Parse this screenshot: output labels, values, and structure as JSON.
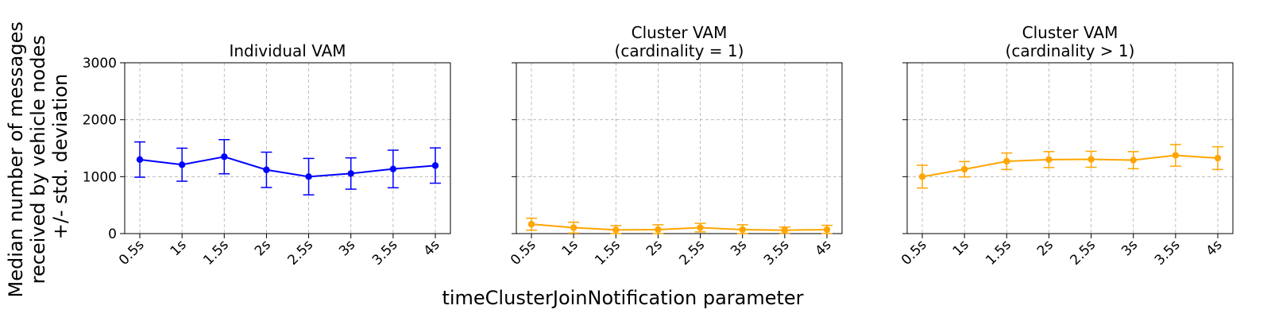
{
  "figure": {
    "ylabel_lines": [
      "Median number of messages",
      "received by vehicle nodes",
      "+/- std. deviation"
    ],
    "xlabel": "timeClusterJoinNotification parameter"
  },
  "chart_data": [
    {
      "type": "line",
      "title_lines": [
        "Individual VAM"
      ],
      "categories": [
        "0.5s",
        "1s",
        "1.5s",
        "2s",
        "2.5s",
        "3s",
        "3.5s",
        "4s"
      ],
      "ylim": [
        0,
        3000
      ],
      "yticks": [
        0,
        1000,
        2000,
        3000
      ],
      "grid": true,
      "series": [
        {
          "color": "#0000ff",
          "values": [
            1300,
            1210,
            1350,
            1120,
            1000,
            1055,
            1135,
            1195
          ],
          "error": [
            310,
            290,
            300,
            310,
            320,
            275,
            330,
            310
          ]
        }
      ]
    },
    {
      "type": "line",
      "title_lines": [
        "Cluster VAM",
        "(cardinality = 1)"
      ],
      "categories": [
        "0.5s",
        "1s",
        "1.5s",
        "2s",
        "2.5s",
        "3s",
        "3.5s",
        "4s"
      ],
      "ylim": [
        0,
        3000
      ],
      "yticks": [
        0,
        1000,
        2000,
        3000
      ],
      "grid": true,
      "series": [
        {
          "color": "#ffa500",
          "values": [
            165,
            105,
            65,
            70,
            105,
            70,
            60,
            70
          ],
          "error": [
            105,
            95,
            75,
            85,
            75,
            85,
            55,
            75
          ]
        }
      ]
    },
    {
      "type": "line",
      "title_lines": [
        "Cluster VAM",
        "(cardinality > 1)"
      ],
      "categories": [
        "0.5s",
        "1s",
        "1.5s",
        "2s",
        "2.5s",
        "3s",
        "3.5s",
        "4s"
      ],
      "ylim": [
        0,
        3000
      ],
      "yticks": [
        0,
        1000,
        2000,
        3000
      ],
      "grid": true,
      "series": [
        {
          "color": "#ffa500",
          "values": [
            1000,
            1130,
            1270,
            1300,
            1305,
            1290,
            1375,
            1325
          ],
          "error": [
            200,
            135,
            145,
            140,
            140,
            150,
            190,
            200
          ]
        }
      ]
    }
  ]
}
